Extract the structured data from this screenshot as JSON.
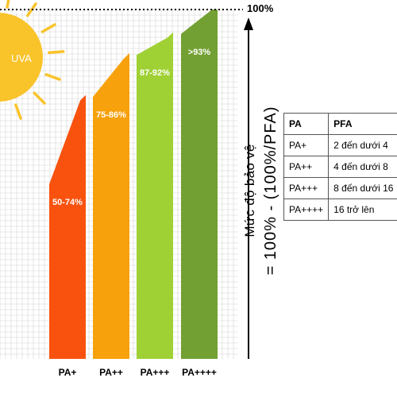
{
  "chart_data": {
    "type": "bar",
    "categories": [
      "PA+",
      "PA++",
      "PA+++",
      "PA++++"
    ],
    "ranges": [
      [
        50,
        74
      ],
      [
        75,
        86
      ],
      [
        87,
        92
      ],
      [
        93,
        100
      ]
    ],
    "data_labels": [
      "50-74%",
      "75-86%",
      "87-92%",
      ">93%"
    ],
    "colors": [
      "#f9520f",
      "#f7a10c",
      "#9fd034",
      "#73a032"
    ],
    "ylim": [
      0,
      100
    ],
    "max_label": "100%",
    "ylabel": "Mức độ bảo vệ",
    "ylabel_formula": "= 100% - (100%/PFA)",
    "grid": true,
    "legend": "none"
  },
  "sun": {
    "label": "UVA",
    "color": "#f9c32a"
  },
  "pfa_table": {
    "headers": [
      "PA",
      "PFA"
    ],
    "rows": [
      [
        "PA+",
        "2 đến dưới 4"
      ],
      [
        "PA++",
        "4 đến dưới 8"
      ],
      [
        "PA+++",
        "8 đến dưới 16"
      ],
      [
        "PA++++",
        "16 trở lên"
      ]
    ]
  }
}
